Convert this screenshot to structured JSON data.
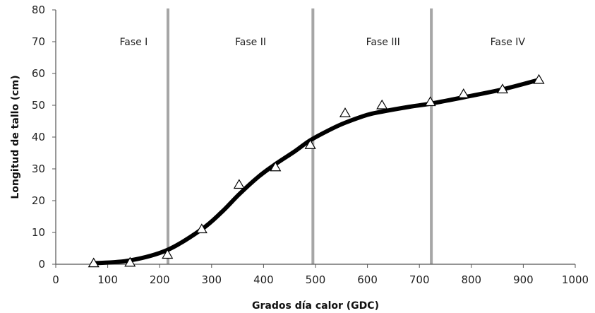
{
  "chart_data": {
    "type": "scatter",
    "title": "",
    "xlabel": "Grados día calor (GDC)",
    "ylabel": "Longitud de tallo (cm)",
    "xlim": [
      0,
      1000
    ],
    "ylim": [
      0,
      80
    ],
    "xticks": [
      0,
      100,
      200,
      300,
      400,
      500,
      600,
      700,
      800,
      900,
      1000
    ],
    "yticks": [
      0,
      10,
      20,
      30,
      40,
      50,
      60,
      70,
      80
    ],
    "grid": false,
    "observed": {
      "marker": "open-triangle",
      "x": [
        73,
        143,
        215,
        281,
        353,
        423,
        490,
        557,
        628,
        721,
        785,
        860,
        930
      ],
      "y": [
        0.3,
        0.5,
        3,
        11,
        25,
        30.5,
        37.5,
        47.5,
        50,
        51,
        53.5,
        55,
        58
      ]
    },
    "fitted_curve": {
      "color": "#000000",
      "x": [
        73,
        143,
        215,
        281,
        320,
        353,
        390,
        423,
        460,
        490,
        530,
        557,
        600,
        628,
        680,
        721,
        785,
        860,
        930
      ],
      "y": [
        0.3,
        1.2,
        4.5,
        11,
        16.5,
        22,
        27.5,
        31.5,
        35.5,
        39,
        42.5,
        44.5,
        47,
        48,
        49.5,
        50.5,
        52.5,
        55,
        58
      ]
    },
    "phase_boundaries": {
      "color": "#a6a6a6",
      "x": [
        216,
        495,
        723
      ]
    },
    "phases": [
      {
        "label": "Fase I",
        "x": 150
      },
      {
        "label": "Fase II",
        "x": 375
      },
      {
        "label": "Fase III",
        "x": 630
      },
      {
        "label": "Fase IV",
        "x": 870
      }
    ],
    "phase_label_y": 70
  }
}
